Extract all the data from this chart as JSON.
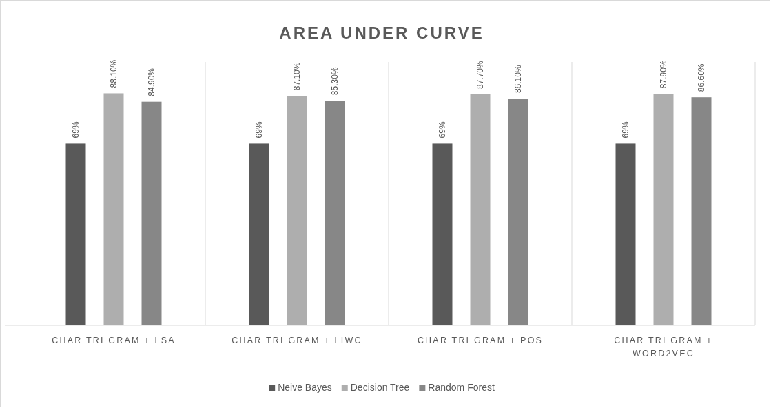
{
  "chart_data": {
    "type": "bar",
    "title": "AREA UNDER CURVE",
    "categories": [
      "CHAR TRI GRAM + LSA",
      "CHAR TRI GRAM + LIWC",
      "CHAR TRI GRAM + POS",
      "CHAR TRI GRAM + WORD2VEC"
    ],
    "series": [
      {
        "name": "Neive Bayes",
        "color": "#595959",
        "values": [
          69,
          69,
          69,
          69
        ],
        "value_labels": [
          "69%",
          "69%",
          "69%",
          "69%"
        ]
      },
      {
        "name": "Decision Tree",
        "color": "#aeaeae",
        "values": [
          88.1,
          87.1,
          87.7,
          87.9
        ],
        "value_labels": [
          "88.10%",
          "87.10%",
          "87.70%",
          "87.90%"
        ]
      },
      {
        "name": "Random Forest",
        "color": "#878787",
        "values": [
          84.9,
          85.3,
          86.1,
          86.6
        ],
        "value_labels": [
          "84.90%",
          "85.30%",
          "86.10%",
          "86.60%"
        ]
      }
    ],
    "ylim": [
      0,
      100
    ],
    "tick_labels": "x",
    "legend": "bottom"
  }
}
